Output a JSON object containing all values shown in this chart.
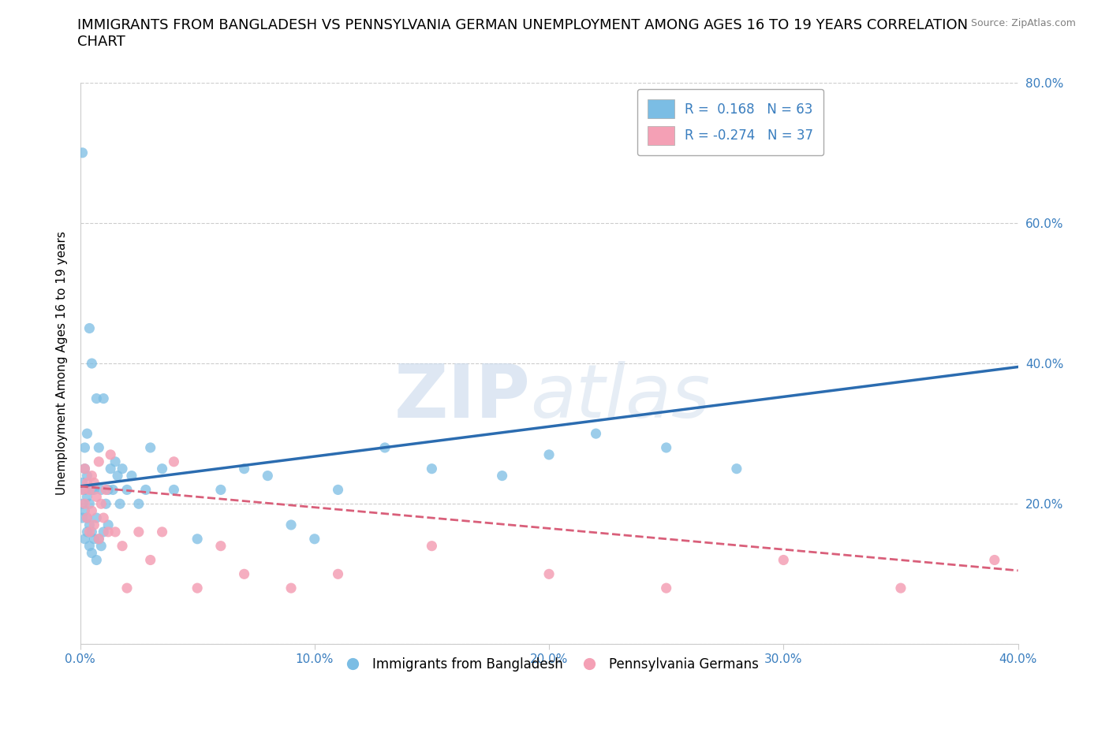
{
  "title": "IMMIGRANTS FROM BANGLADESH VS PENNSYLVANIA GERMAN UNEMPLOYMENT AMONG AGES 16 TO 19 YEARS CORRELATION\nCHART",
  "source": "Source: ZipAtlas.com",
  "xlabel": "",
  "ylabel": "Unemployment Among Ages 16 to 19 years",
  "xlim": [
    0.0,
    0.4
  ],
  "ylim": [
    0.0,
    0.8
  ],
  "xticks": [
    0.0,
    0.1,
    0.2,
    0.3,
    0.4
  ],
  "yticks": [
    0.0,
    0.2,
    0.4,
    0.6,
    0.8
  ],
  "xtick_labels": [
    "0.0%",
    "10.0%",
    "20.0%",
    "30.0%",
    "40.0%"
  ],
  "ytick_right_labels": [
    "",
    "20.0%",
    "40.0%",
    "60.0%",
    "80.0%"
  ],
  "watermark_zip": "ZIP",
  "watermark_atlas": "atlas",
  "blue_R": 0.168,
  "blue_N": 63,
  "pink_R": -0.274,
  "pink_N": 37,
  "blue_color": "#7bbde4",
  "pink_color": "#f4a0b5",
  "blue_line_color": "#2b6cb0",
  "pink_line_color": "#d95f7a",
  "legend_label_blue": "Immigrants from Bangladesh",
  "legend_label_pink": "Pennsylvania Germans",
  "blue_scatter_x": [
    0.001,
    0.001,
    0.001,
    0.001,
    0.002,
    0.002,
    0.002,
    0.002,
    0.002,
    0.003,
    0.003,
    0.003,
    0.003,
    0.003,
    0.004,
    0.004,
    0.004,
    0.004,
    0.005,
    0.005,
    0.005,
    0.005,
    0.006,
    0.006,
    0.007,
    0.007,
    0.007,
    0.008,
    0.008,
    0.009,
    0.009,
    0.01,
    0.01,
    0.011,
    0.012,
    0.012,
    0.013,
    0.014,
    0.015,
    0.016,
    0.017,
    0.018,
    0.02,
    0.022,
    0.025,
    0.028,
    0.03,
    0.035,
    0.04,
    0.05,
    0.06,
    0.07,
    0.08,
    0.09,
    0.1,
    0.11,
    0.13,
    0.15,
    0.18,
    0.2,
    0.22,
    0.25,
    0.28
  ],
  "blue_scatter_y": [
    0.18,
    0.2,
    0.23,
    0.7,
    0.15,
    0.19,
    0.22,
    0.25,
    0.28,
    0.16,
    0.18,
    0.21,
    0.24,
    0.3,
    0.14,
    0.17,
    0.2,
    0.45,
    0.13,
    0.16,
    0.22,
    0.4,
    0.15,
    0.22,
    0.12,
    0.18,
    0.35,
    0.15,
    0.28,
    0.14,
    0.22,
    0.16,
    0.35,
    0.2,
    0.17,
    0.22,
    0.25,
    0.22,
    0.26,
    0.24,
    0.2,
    0.25,
    0.22,
    0.24,
    0.2,
    0.22,
    0.28,
    0.25,
    0.22,
    0.15,
    0.22,
    0.25,
    0.24,
    0.17,
    0.15,
    0.22,
    0.28,
    0.25,
    0.24,
    0.27,
    0.3,
    0.28,
    0.25
  ],
  "pink_scatter_x": [
    0.001,
    0.002,
    0.002,
    0.003,
    0.003,
    0.004,
    0.004,
    0.005,
    0.005,
    0.006,
    0.006,
    0.007,
    0.008,
    0.008,
    0.009,
    0.01,
    0.011,
    0.012,
    0.013,
    0.015,
    0.018,
    0.02,
    0.025,
    0.03,
    0.035,
    0.04,
    0.05,
    0.06,
    0.07,
    0.09,
    0.11,
    0.15,
    0.2,
    0.25,
    0.3,
    0.35,
    0.39
  ],
  "pink_scatter_y": [
    0.22,
    0.2,
    0.25,
    0.18,
    0.23,
    0.16,
    0.22,
    0.19,
    0.24,
    0.17,
    0.23,
    0.21,
    0.15,
    0.26,
    0.2,
    0.18,
    0.22,
    0.16,
    0.27,
    0.16,
    0.14,
    0.08,
    0.16,
    0.12,
    0.16,
    0.26,
    0.08,
    0.14,
    0.1,
    0.08,
    0.1,
    0.14,
    0.1,
    0.08,
    0.12,
    0.08,
    0.12
  ],
  "grid_color": "#cccccc",
  "background_color": "#ffffff",
  "title_fontsize": 13,
  "axis_label_fontsize": 11,
  "tick_fontsize": 11,
  "legend_fontsize": 12,
  "blue_trendline_x": [
    0.0,
    0.4
  ],
  "blue_trendline_y": [
    0.225,
    0.395
  ],
  "pink_trendline_x": [
    0.0,
    0.4
  ],
  "pink_trendline_y": [
    0.225,
    0.105
  ]
}
